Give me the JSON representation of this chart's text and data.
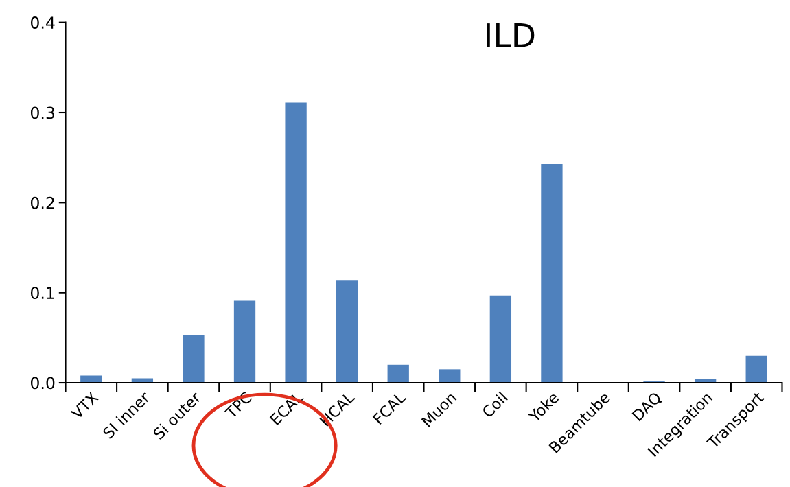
{
  "chart_data": {
    "type": "bar",
    "title": "ILD",
    "categories": [
      "VTX",
      "SI inner",
      "Si outer",
      "TPC",
      "ECAL",
      "HCAL",
      "FCAL",
      "Muon",
      "Coil",
      "Yoke",
      "Beamtube",
      "DAQ",
      "Integration",
      "Transport"
    ],
    "values": [
      0.008,
      0.005,
      0.053,
      0.091,
      0.311,
      0.114,
      0.02,
      0.015,
      0.097,
      0.243,
      0.0,
      0.0015,
      0.004,
      0.03
    ],
    "color": "#4f81bd",
    "ylim": [
      0,
      0.4
    ],
    "yticks": [
      {
        "value": 0,
        "label": "0.0"
      },
      {
        "value": 0.1,
        "label": "0.1"
      },
      {
        "value": 0.2,
        "label": "0.2"
      },
      {
        "value": 0.3,
        "label": "0.3"
      },
      {
        "value": 0.4,
        "label": "0.4"
      }
    ],
    "grid": false
  }
}
